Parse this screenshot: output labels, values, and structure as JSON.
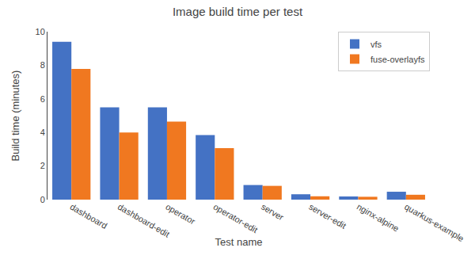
{
  "chart_data": {
    "type": "bar",
    "title": "Image build time per test",
    "xlabel": "Test name",
    "ylabel": "Build time (minutes)",
    "categories": [
      "dashboard",
      "dashboard-edit",
      "operator",
      "operator-edit",
      "server",
      "server-edit",
      "nginx-alpine",
      "quarkus-example"
    ],
    "series": [
      {
        "name": "vfs",
        "color": "#4472c4",
        "values": [
          9.4,
          5.5,
          5.5,
          3.85,
          0.87,
          0.32,
          0.19,
          0.47
        ]
      },
      {
        "name": "fuse-overlayfs",
        "color": "#f07820",
        "values": [
          7.78,
          4.0,
          4.65,
          3.07,
          0.82,
          0.2,
          0.17,
          0.29
        ]
      }
    ],
    "ylim": [
      0,
      10
    ],
    "yticks": [
      0,
      2,
      4,
      6,
      8,
      10
    ],
    "grid": false,
    "legend": "upper right"
  }
}
